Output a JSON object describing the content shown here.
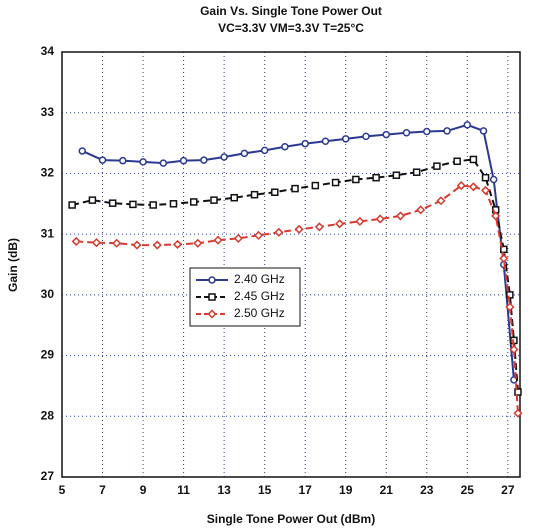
{
  "chart_data": {
    "type": "line",
    "title": "Gain Vs. Single Tone Power Out",
    "subtitle": "VC=3.3V VM=3.3V T=25°C",
    "x_label": "Single Tone Power Out (dBm)",
    "y_label": "Gain (dB)",
    "xlim": [
      5,
      27.6
    ],
    "ylim": [
      27,
      34
    ],
    "xticks": [
      5,
      7,
      9,
      11,
      13,
      15,
      17,
      19,
      21,
      23,
      25,
      27
    ],
    "yticks": [
      27,
      28,
      29,
      30,
      31,
      32,
      33,
      34
    ],
    "grid": true,
    "series": [
      {
        "name": "2.40 GHz",
        "color": "#2b3990",
        "marker": "circle",
        "dash": false,
        "x": [
          6,
          7,
          8,
          9,
          10,
          11,
          12,
          13,
          14,
          15,
          16,
          17,
          18,
          19,
          20,
          21,
          22,
          23,
          24,
          25,
          25.8,
          26.3,
          26.8,
          27.3
        ],
        "values": [
          32.37,
          32.22,
          32.21,
          32.19,
          32.17,
          32.21,
          32.22,
          32.27,
          32.33,
          32.38,
          32.44,
          32.49,
          32.53,
          32.57,
          32.61,
          32.64,
          32.67,
          32.69,
          32.7,
          32.8,
          32.7,
          31.9,
          30.5,
          28.6
        ]
      },
      {
        "name": "2.45 GHz",
        "color": "#111111",
        "marker": "square",
        "dash": true,
        "x": [
          5.5,
          6.5,
          7.5,
          8.5,
          9.5,
          10.5,
          11.5,
          12.5,
          13.5,
          14.5,
          15.5,
          16.5,
          17.5,
          18.5,
          19.5,
          20.5,
          21.5,
          22.5,
          23.5,
          24.5,
          25.3,
          25.9,
          26.4,
          26.8,
          27.1,
          27.3,
          27.5
        ],
        "values": [
          31.48,
          31.56,
          31.51,
          31.49,
          31.48,
          31.5,
          31.53,
          31.56,
          31.6,
          31.65,
          31.69,
          31.75,
          31.8,
          31.85,
          31.9,
          31.93,
          31.97,
          32.02,
          32.12,
          32.2,
          32.23,
          31.93,
          31.4,
          30.75,
          30.0,
          29.25,
          28.4
        ]
      },
      {
        "name": "2.50 GHz",
        "color": "#d63a2f",
        "marker": "diamond",
        "dash": true,
        "x": [
          5.7,
          6.7,
          7.7,
          8.7,
          9.7,
          10.7,
          11.7,
          12.7,
          13.7,
          14.7,
          15.7,
          16.7,
          17.7,
          18.7,
          19.7,
          20.7,
          21.7,
          22.7,
          23.7,
          24.7,
          25.3,
          25.9,
          26.4,
          26.8,
          27.1,
          27.3,
          27.5
        ],
        "values": [
          30.88,
          30.86,
          30.85,
          30.82,
          30.82,
          30.83,
          30.85,
          30.9,
          30.93,
          30.98,
          31.03,
          31.08,
          31.12,
          31.17,
          31.21,
          31.25,
          31.3,
          31.4,
          31.55,
          31.8,
          31.78,
          31.72,
          31.3,
          30.6,
          29.8,
          29.1,
          28.05
        ]
      }
    ]
  }
}
